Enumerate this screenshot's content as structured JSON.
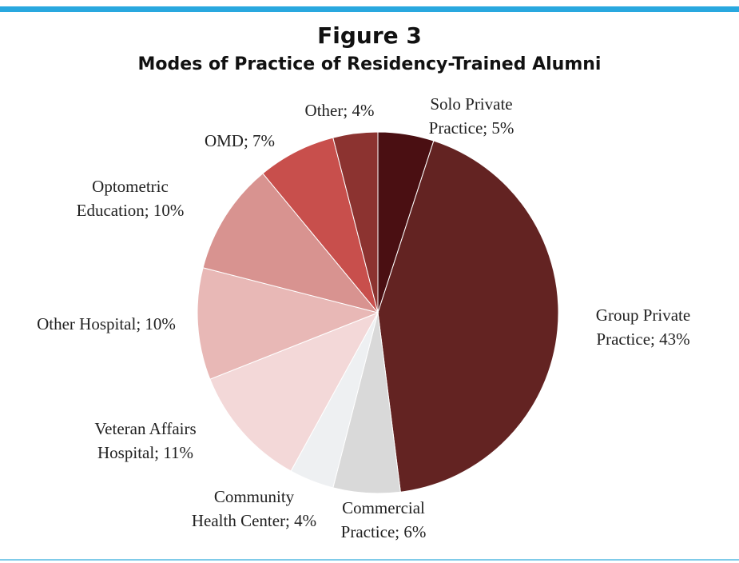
{
  "chart_data": {
    "type": "pie",
    "title": "Figure 3",
    "subtitle": "Modes of Practice of Residency-Trained Alumni",
    "categories": [
      "Solo Private Practice; 5%",
      "Group Private Practice; 43%",
      "Commercial Practice; 6%",
      "Community Health Center; 4%",
      "Veteran Affairs Hospital; 11%",
      "Other Hospital; 10%",
      "Optometric Education; 10%",
      "OMD; 7%",
      "Other; 4%"
    ],
    "values": [
      5,
      43,
      6,
      4,
      11,
      10,
      10,
      7,
      4
    ],
    "colors": [
      "#4a0f12",
      "#632322",
      "#d9d9d9",
      "#eef0f2",
      "#f3d8d8",
      "#e8b8b6",
      "#d89390",
      "#c84f4c",
      "#8c3330"
    ]
  }
}
